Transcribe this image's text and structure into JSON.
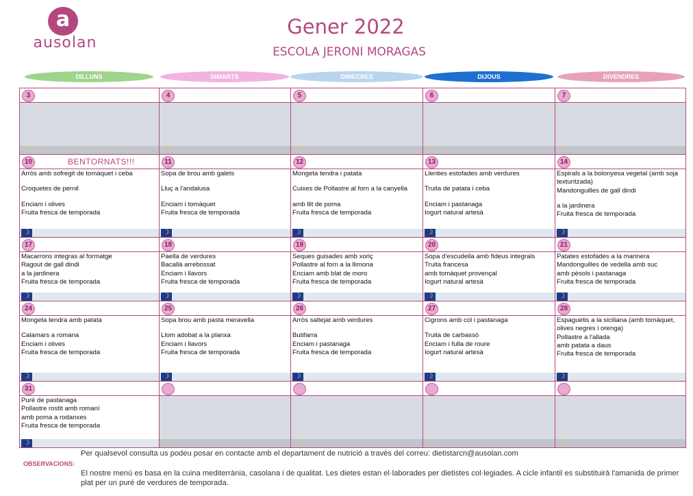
{
  "brand": {
    "logo_letter": "a",
    "name": "ausolan"
  },
  "title": "Gener 2022",
  "subtitle": "ESCOLA JERONI MORAGAS",
  "days": [
    {
      "label": "DILLUNS",
      "color": "#9fd48b"
    },
    {
      "label": "DIMARTS",
      "color": "#f2b3e1"
    },
    {
      "label": "DIMECRES",
      "color": "#b9d4ef"
    },
    {
      "label": "DIJOUS",
      "color": "#1f6fd1"
    },
    {
      "label": "DIVENDRES",
      "color": "#e9a1b8"
    }
  ],
  "weeks": [
    [
      {
        "day": "3",
        "closed": true
      },
      {
        "day": "4",
        "closed": true
      },
      {
        "day": "5",
        "closed": true
      },
      {
        "day": "6",
        "closed": true
      },
      {
        "day": "7",
        "closed": true
      }
    ],
    [
      {
        "day": "10",
        "banner": "BENTORNATS!!!",
        "meals": [
          "Arròs amb sofregit de tomàquet i ceba",
          "",
          "Croquetes de pernil",
          "",
          "Enciam i olives",
          "Fruita fresca de temporada"
        ]
      },
      {
        "day": "11",
        "meals": [
          "Sopa de brou amb galets",
          "",
          "Lluç a l'andalusa",
          "",
          "Enciam i tomàquet",
          "Fruita fresca de temporada"
        ]
      },
      {
        "day": "12",
        "meals": [
          "Mongeta tendra i patata",
          "",
          "Cuixes de Pollastre al forn a la canyella",
          "",
          "amb llit de poma",
          "Fruita fresca de temporada"
        ]
      },
      {
        "day": "13",
        "meals": [
          "Llenties estofades amb verdures",
          "",
          "Truita de patata i ceba",
          "",
          "Enciam i pastanaga",
          "Iogurt natural artesà"
        ]
      },
      {
        "day": "14",
        "meals": [
          "Espirals a la bolonyesa vegetal (amb soja",
          "texturitzada)",
          "Mandonguilles de gall dindi",
          "",
          "a la jardinera",
          "Fruita fresca de temporada"
        ]
      }
    ],
    [
      {
        "day": "17",
        "meals": [
          "Macarrons integras al formatge",
          "Ragout de gall dindi",
          "a la jardinera",
          "Fruita fresca de temporada"
        ]
      },
      {
        "day": "18",
        "meals": [
          "Paella de verdures",
          "Bacallà arrebossat",
          "Enciam i llavors",
          "Fruita fresca de temporada"
        ]
      },
      {
        "day": "19",
        "meals": [
          "Seques guisades amb xoriç",
          "Pollastre al forn a la llimona",
          "Enciam amb blat de moro",
          "Fruita fresca de temporada"
        ]
      },
      {
        "day": "20",
        "meals": [
          "Sopa d'escudella amb fideus integrals",
          "Truita francesa",
          "amb tomàquet provençal",
          "Iogurt natural artesà"
        ]
      },
      {
        "day": "21",
        "meals": [
          "Patates estofades a la marinera",
          "Mandonguilles de vedella amb suc",
          "amb pèsols i pastanaga",
          "Fruita fresca de temporada"
        ]
      }
    ],
    [
      {
        "day": "24",
        "meals": [
          "Mongeta tendra amb patata",
          "",
          "Calamars a romana",
          "Enciam i olives",
          "Fruita fresca de temporada"
        ]
      },
      {
        "day": "25",
        "meals": [
          "Sopa brou amb pasta meravella",
          "",
          "Llom adobat a la planxa",
          "Enciam i llavors",
          "Fruita fresca de temporada"
        ]
      },
      {
        "day": "26",
        "meals": [
          "Arròs saltejat amb verdures",
          "",
          "Butifarra",
          "Enciam i pastanaga",
          "Fruita fresca de temporada"
        ]
      },
      {
        "day": "27",
        "meals": [
          "Cigrons amb col i pastanaga",
          "",
          "Truita de carbassó",
          "Enciam i fulla de roure",
          "Iogurt natural artesà"
        ]
      },
      {
        "day": "28",
        "meals": [
          "Espaguetis a la siciliana (amb tomàquet,",
          "olives negres i orenga)",
          "Pollastre a l'allada",
          "amb patata a daus",
          "Fruita fresca de temporada"
        ]
      }
    ],
    [
      {
        "day": "31",
        "meals": [
          "Puré de pastanaga",
          "Pollastre rostit amb romaní",
          "amb poma a rodanxes",
          "Fruita fresca de temporada"
        ]
      },
      {
        "day": "",
        "closed": true
      },
      {
        "day": "",
        "closed": true
      },
      {
        "day": "",
        "closed": true
      },
      {
        "day": "",
        "closed": true
      }
    ]
  ],
  "footer": {
    "contact": "Per qualsevol consulta us podeu posar en contacte amb el departament de nutrició a través del correu: dietistarcn@ausolan.com",
    "obs_label": "OBSERVACIONS:",
    "obs_text": "El nostre menú es basa en la cuina mediterrània, casolana i de qualitat. Les dietes estan el·laborades per dietistes col·legiades. A cicle infantil es substituirà l'amanida de primer plat per un puré de verdures de temporada."
  }
}
